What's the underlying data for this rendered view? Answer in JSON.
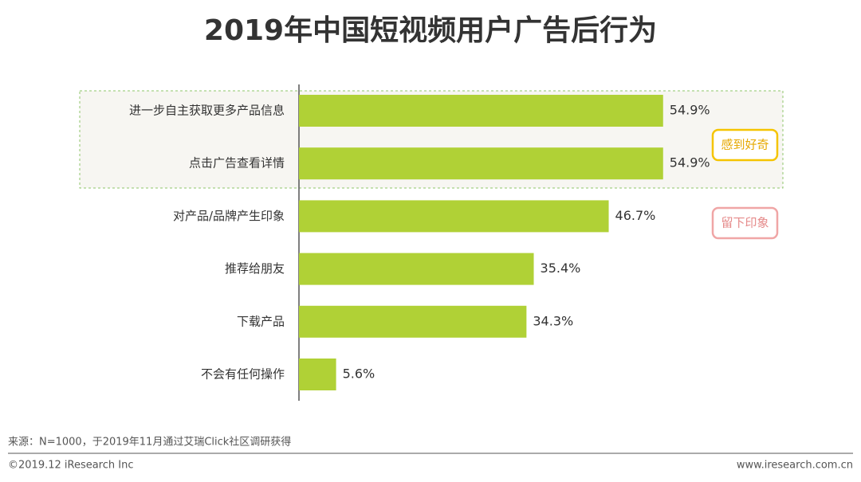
{
  "chart_data": {
    "type": "hbar",
    "title": "2019年中国短视频用户广告后行为",
    "categories": [
      "进一步自主获取更多产品信息",
      "点击广告查看详情",
      "对产品/品牌产生印象",
      "推荐给朋友",
      "下载产品",
      "不会有任何操作"
    ],
    "values": [
      54.9,
      54.9,
      46.7,
      35.4,
      34.3,
      5.6
    ],
    "value_labels": [
      "54.9%",
      "54.9%",
      "46.7%",
      "35.4%",
      "34.3%",
      "5.6%"
    ],
    "color": "#b0d136",
    "annotations": [
      "感到好奇",
      "留下印象"
    ]
  },
  "footer": {
    "source": "来源：N=1000，于2019年11月通过艾瑞Click社区调研获得",
    "copyright": "©2019.12 iResearch Inc",
    "url": "www.iresearch.com.cn"
  }
}
